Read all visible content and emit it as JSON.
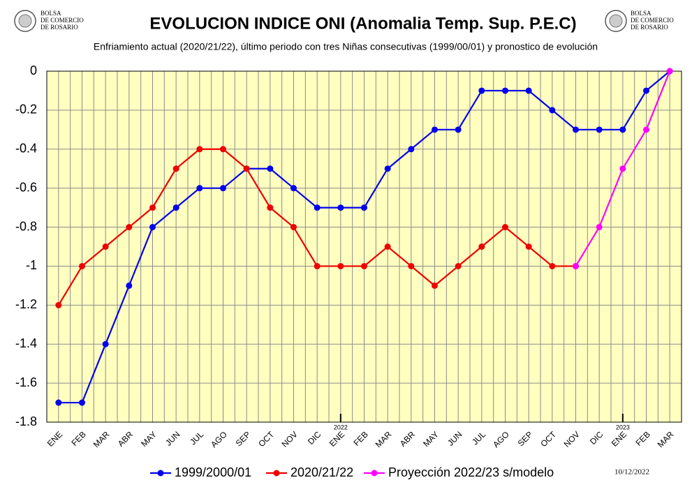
{
  "chart_data": {
    "type": "line",
    "title": "EVOLUCION INDICE ONI (Anomalia Temp. Sup. P.E.C)",
    "subtitle": "Enfriamiento actual (2020/21/22),  último periodo con tres Niñas consecutivas (1999/00/01) y pronostico de evolución",
    "logo_text": [
      "BOLSA",
      "DE COMERCIO",
      "DE ROSARIO"
    ],
    "date": "10/12/2022",
    "year_labels": [
      "2022",
      "2023"
    ],
    "categories": [
      "ENE",
      "FEB",
      "MAR",
      "ABR",
      "MAY",
      "JUN",
      "JUL",
      "AGO",
      "SEP",
      "OCT",
      "NOV",
      "DIC",
      "ENE",
      "FEB",
      "MAR",
      "ABR",
      "MAY",
      "JUN",
      "JUL",
      "AGO",
      "SEP",
      "OCT",
      "NOV",
      "DIC",
      "ENE",
      "FEB",
      "MAR"
    ],
    "series": [
      {
        "name": "1999/2000/01",
        "color": "#0000ee",
        "values": [
          -1.7,
          -1.7,
          -1.4,
          -1.1,
          -0.8,
          -0.7,
          -0.6,
          -0.6,
          -0.5,
          -0.5,
          -0.6,
          -0.7,
          -0.7,
          -0.7,
          -0.5,
          -0.4,
          -0.3,
          -0.3,
          -0.1,
          -0.1,
          -0.1,
          -0.2,
          -0.3,
          -0.3,
          -0.3,
          -0.1,
          0
        ]
      },
      {
        "name": "2020/21/22",
        "color": "#ee0000",
        "values": [
          -1.2,
          -1.0,
          -0.9,
          -0.8,
          -0.7,
          -0.5,
          -0.4,
          -0.4,
          -0.5,
          -0.7,
          -0.8,
          -1.0,
          -1.0,
          -1.0,
          -0.9,
          -1.0,
          -1.1,
          -1.0,
          -0.9,
          -0.8,
          -0.9,
          -1.0,
          -1.0,
          null,
          null,
          null,
          null
        ]
      },
      {
        "name": "Proyección 2022/23  s/modelo",
        "color": "#ff00ff",
        "values": [
          null,
          null,
          null,
          null,
          null,
          null,
          null,
          null,
          null,
          null,
          null,
          null,
          null,
          null,
          null,
          null,
          null,
          null,
          null,
          null,
          null,
          null,
          -1.0,
          -0.8,
          -0.5,
          -0.3,
          0
        ]
      }
    ],
    "ylim": [
      -1.8,
      0
    ],
    "yticks": [
      0,
      -0.2,
      -0.4,
      -0.6,
      -0.8,
      -1,
      -1.2,
      -1.4,
      -1.6,
      -1.8
    ],
    "grid": true,
    "background": "#ffffc0"
  }
}
